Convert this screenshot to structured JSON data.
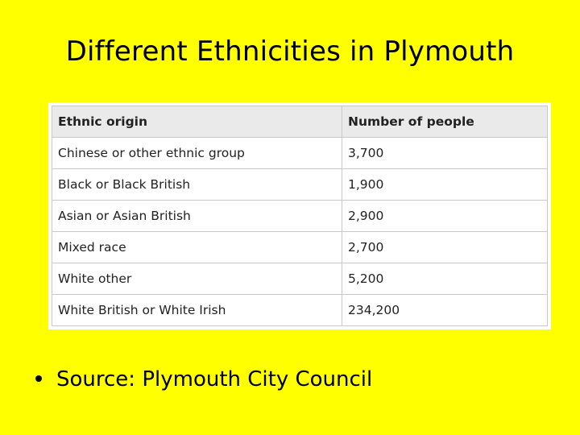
{
  "slide": {
    "title": "Different Ethnicities in Plymouth",
    "bullet": "Source: Plymouth City Council"
  },
  "table": {
    "headers": [
      "Ethnic origin",
      "Number of people"
    ],
    "rows": [
      [
        "Chinese or other ethnic group",
        "3,700"
      ],
      [
        "Black or Black British",
        "1,900"
      ],
      [
        "Asian or Asian British",
        "2,900"
      ],
      [
        "Mixed race",
        "2,700"
      ],
      [
        "White other",
        "5,200"
      ],
      [
        "White British or White Irish",
        "234,200"
      ]
    ]
  },
  "colors": {
    "background": "#ffff00",
    "header_bg": "#eaeaea",
    "cell_border": "#c8c8c8"
  }
}
